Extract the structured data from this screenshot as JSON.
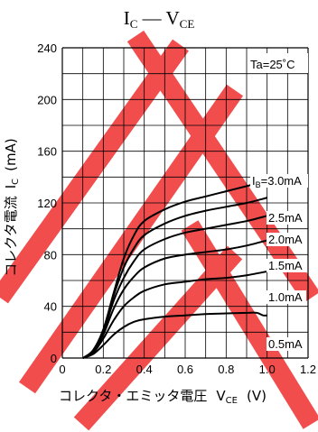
{
  "chart_data": {
    "type": "line",
    "title": {
      "main": "I",
      "main_sub": "C",
      "dash": " — ",
      "second": "V",
      "second_sub": "CE"
    },
    "xlabel": {
      "text": "コレクタ・エミッタ電圧",
      "symbol": "V",
      "symbol_sub": "CE",
      "unit": "(V)"
    },
    "ylabel": {
      "text": "コレクタ電流",
      "symbol": "I",
      "symbol_sub": "C",
      "unit": "(mA)"
    },
    "xlim": [
      0,
      1.2
    ],
    "ylim": [
      0,
      240
    ],
    "x_ticks": [
      "0",
      "0.2",
      "0.4",
      "0.6",
      "0.8",
      "1.0",
      "1.2"
    ],
    "y_ticks": [
      "0",
      "40",
      "80",
      "120",
      "160",
      "200",
      "240"
    ],
    "grid": true,
    "condition": "Ta=25˚C",
    "series_prefix": {
      "symbol": "I",
      "symbol_sub": "B",
      "eq": "="
    },
    "series": [
      {
        "name": "3.0mA",
        "points": [
          [
            0.1,
            0
          ],
          [
            0.15,
            6
          ],
          [
            0.2,
            22
          ],
          [
            0.25,
            50
          ],
          [
            0.3,
            77
          ],
          [
            0.35,
            95
          ],
          [
            0.4,
            106
          ],
          [
            0.5,
            115
          ],
          [
            0.6,
            121
          ],
          [
            0.7,
            125
          ],
          [
            0.8,
            129
          ],
          [
            0.9,
            133
          ],
          [
            1.0,
            137
          ]
        ]
      },
      {
        "name": "2.5mA",
        "points": [
          [
            0.1,
            0
          ],
          [
            0.15,
            6
          ],
          [
            0.2,
            22
          ],
          [
            0.25,
            48
          ],
          [
            0.3,
            70
          ],
          [
            0.35,
            85
          ],
          [
            0.4,
            95
          ],
          [
            0.5,
            104
          ],
          [
            0.6,
            110
          ],
          [
            0.7,
            114
          ],
          [
            0.8,
            117
          ],
          [
            0.9,
            120
          ],
          [
            1.0,
            124
          ]
        ]
      },
      {
        "name": "2.0mA",
        "points": [
          [
            0.1,
            0
          ],
          [
            0.15,
            5
          ],
          [
            0.2,
            20
          ],
          [
            0.25,
            44
          ],
          [
            0.3,
            62
          ],
          [
            0.35,
            75
          ],
          [
            0.4,
            84
          ],
          [
            0.5,
            92
          ],
          [
            0.6,
            97
          ],
          [
            0.7,
            100
          ],
          [
            0.8,
            103
          ],
          [
            0.9,
            106
          ],
          [
            1.0,
            110
          ]
        ]
      },
      {
        "name": "1.5mA",
        "points": [
          [
            0.1,
            0
          ],
          [
            0.15,
            4
          ],
          [
            0.2,
            18
          ],
          [
            0.25,
            38
          ],
          [
            0.3,
            53
          ],
          [
            0.35,
            63
          ],
          [
            0.4,
            70
          ],
          [
            0.5,
            77
          ],
          [
            0.6,
            80
          ],
          [
            0.7,
            82
          ],
          [
            0.8,
            84
          ],
          [
            0.9,
            87
          ],
          [
            1.0,
            91
          ]
        ]
      },
      {
        "name": "1.0mA",
        "points": [
          [
            0.1,
            0
          ],
          [
            0.15,
            4
          ],
          [
            0.2,
            15
          ],
          [
            0.25,
            29
          ],
          [
            0.3,
            40
          ],
          [
            0.35,
            47
          ],
          [
            0.4,
            52
          ],
          [
            0.5,
            57
          ],
          [
            0.6,
            59
          ],
          [
            0.7,
            61
          ],
          [
            0.8,
            62
          ],
          [
            0.9,
            64
          ],
          [
            1.0,
            67
          ]
        ]
      },
      {
        "name": "0.5mA",
        "points": [
          [
            0.1,
            0
          ],
          [
            0.15,
            3
          ],
          [
            0.2,
            10
          ],
          [
            0.25,
            18
          ],
          [
            0.3,
            24
          ],
          [
            0.35,
            28
          ],
          [
            0.4,
            30
          ],
          [
            0.5,
            32
          ],
          [
            0.6,
            33
          ],
          [
            0.7,
            34
          ],
          [
            0.8,
            34.5
          ],
          [
            0.9,
            35
          ],
          [
            0.95,
            35
          ],
          [
            0.98,
            33
          ],
          [
            1.0,
            33
          ]
        ]
      }
    ],
    "colors": {
      "curve": "#000000",
      "grid": "#000000",
      "watermark": "#f03a3a"
    }
  }
}
